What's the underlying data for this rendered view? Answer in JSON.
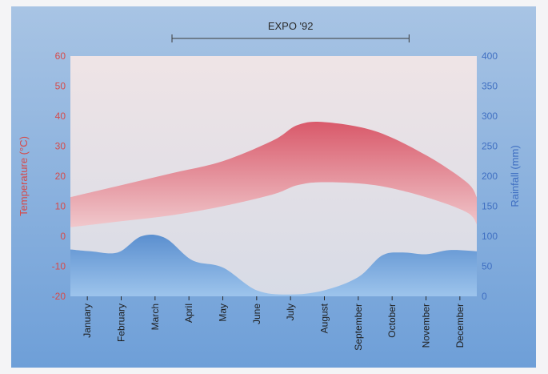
{
  "chart_data": {
    "type": "area",
    "annotation": {
      "label": "EXPO '92",
      "from": "April",
      "to": "October"
    },
    "categories": [
      "January",
      "February",
      "March",
      "April",
      "May",
      "June",
      "July",
      "August",
      "September",
      "October",
      "November",
      "December"
    ],
    "left_axis": {
      "label": "Temperature (°C)",
      "min": -20,
      "max": 60,
      "ticks": [
        -20,
        -10,
        0,
        10,
        20,
        30,
        40,
        50,
        60
      ]
    },
    "right_axis": {
      "label": "Rainfall (mm)",
      "min": 0,
      "max": 400,
      "ticks": [
        0,
        50,
        100,
        150,
        200,
        250,
        300,
        350,
        400
      ]
    },
    "series": [
      {
        "axis": "left",
        "kind": "band",
        "x": [
          0.0,
          1.5,
          3.0,
          4.5,
          6.0,
          6.7,
          7.5,
          9.0,
          10.5,
          11.7,
          12.0
        ],
        "high": [
          13,
          17,
          21,
          25,
          32,
          37,
          38,
          35,
          27,
          18,
          13
        ],
        "low": [
          3,
          5,
          7,
          10,
          14,
          17,
          18,
          17,
          13,
          8,
          4
        ]
      },
      {
        "axis": "right",
        "kind": "area",
        "x": [
          0.0,
          0.6,
          1.4,
          2.1,
          2.8,
          3.6,
          4.5,
          5.5,
          6.5,
          7.5,
          8.5,
          9.2,
          9.8,
          10.5,
          11.2,
          12.0
        ],
        "values": [
          78,
          75,
          73,
          100,
          97,
          60,
          48,
          10,
          3,
          10,
          32,
          68,
          73,
          70,
          77,
          75
        ]
      }
    ],
    "colors": {
      "band_top": "#d9596a",
      "band_bottom": "#f0c8cc",
      "rain_top": "#5b8fcf",
      "rain_bottom": "#9dc4ec",
      "bg_top": "#a8c4e4",
      "bg_bottom": "#6e9fd8",
      "plot_top": "#efe4e6",
      "plot_bottom": "#d7dbe6",
      "temp_text": "#d54a4a",
      "rain_text": "#3f6fc2"
    },
    "grid": false
  }
}
